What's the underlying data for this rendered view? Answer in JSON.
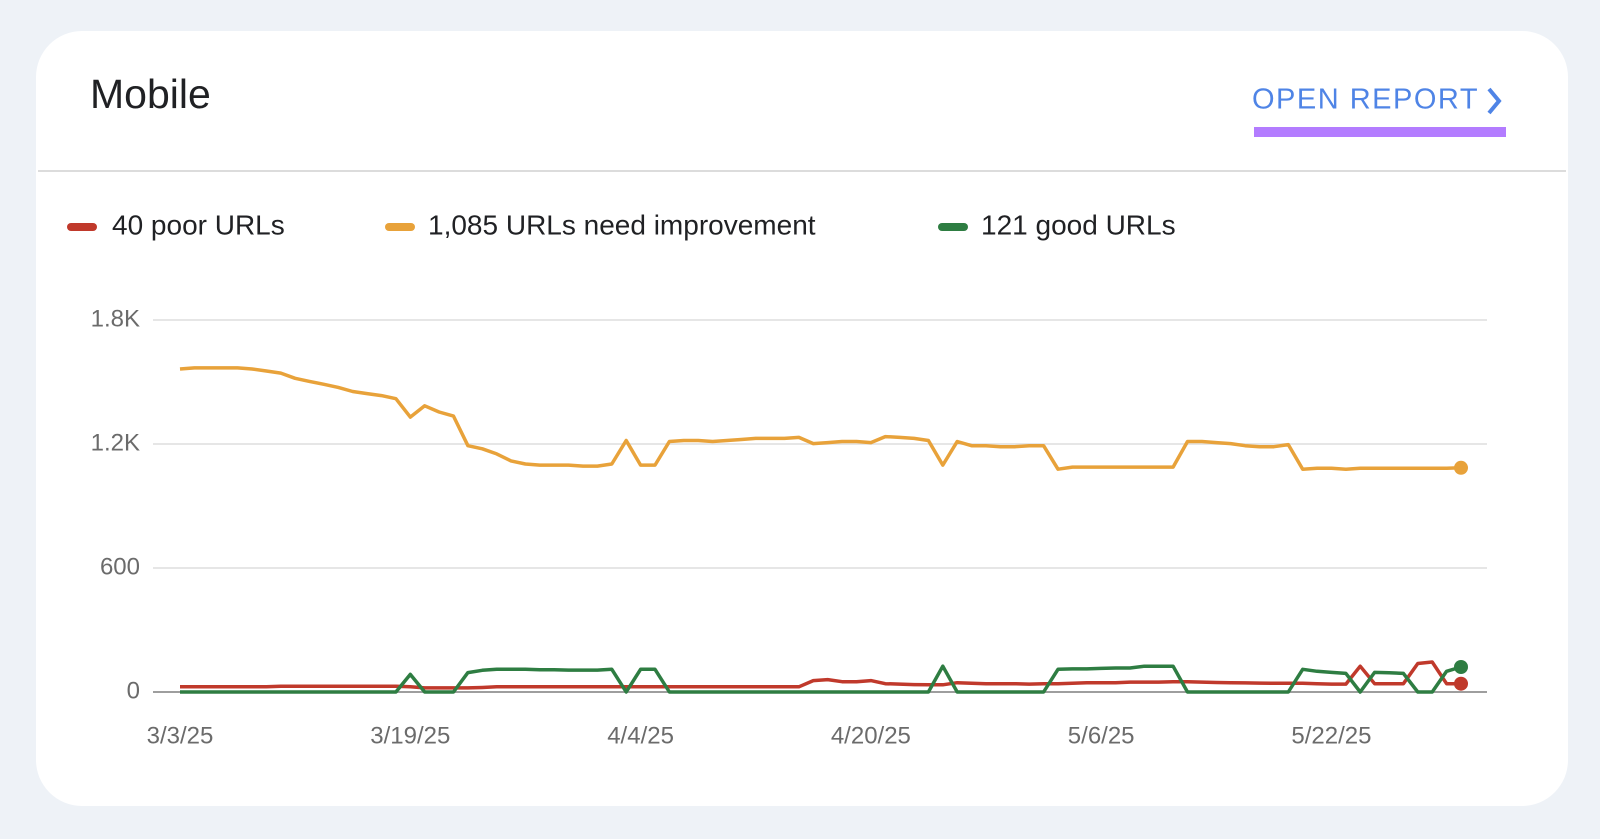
{
  "header": {
    "title": "Mobile",
    "link": "OPEN REPORT"
  },
  "chart_data": {
    "type": "line",
    "categories": [
      "3/3/25",
      null,
      null,
      null,
      null,
      null,
      null,
      null,
      null,
      null,
      null,
      null,
      null,
      null,
      null,
      null,
      "3/19/25",
      null,
      null,
      null,
      null,
      null,
      null,
      null,
      null,
      null,
      null,
      null,
      null,
      null,
      null,
      null,
      "4/4/25",
      null,
      null,
      null,
      null,
      null,
      null,
      null,
      null,
      null,
      null,
      null,
      null,
      null,
      null,
      null,
      "4/20/25",
      null,
      null,
      null,
      null,
      null,
      null,
      null,
      null,
      null,
      null,
      null,
      null,
      null,
      null,
      null,
      "5/6/25",
      null,
      null,
      null,
      null,
      null,
      null,
      null,
      null,
      null,
      null,
      null,
      null,
      null,
      null,
      null,
      "5/22/25",
      null,
      null,
      null,
      null,
      null,
      null,
      null,
      null,
      null
    ],
    "series": [
      {
        "name": "40 poor URLs",
        "color": "#c0392b",
        "values": [
          25,
          25,
          25,
          25,
          25,
          25,
          25,
          28,
          28,
          28,
          28,
          28,
          28,
          28,
          28,
          28,
          25,
          20,
          20,
          20,
          20,
          22,
          25,
          25,
          25,
          25,
          25,
          25,
          25,
          25,
          25,
          25,
          25,
          25,
          25,
          25,
          25,
          25,
          25,
          25,
          25,
          25,
          25,
          25,
          55,
          60,
          50,
          50,
          55,
          40,
          38,
          36,
          35,
          35,
          45,
          42,
          40,
          40,
          40,
          38,
          40,
          40,
          42,
          45,
          45,
          45,
          48,
          48,
          48,
          50,
          50,
          48,
          46,
          45,
          44,
          43,
          42,
          42,
          42,
          40,
          38,
          38,
          125,
          40,
          40,
          40,
          138,
          145,
          40,
          40
        ]
      },
      {
        "name": "1,085 URLs need improvement",
        "color": "#e8a23a",
        "values": [
          1563,
          1568,
          1568,
          1568,
          1568,
          1563,
          1553,
          1543,
          1518,
          1503,
          1489,
          1474,
          1454,
          1444,
          1434,
          1419,
          1330,
          1385,
          1355,
          1335,
          1192,
          1177,
          1152,
          1118,
          1103,
          1098,
          1098,
          1098,
          1093,
          1093,
          1103,
          1217,
          1098,
          1098,
          1212,
          1217,
          1217,
          1212,
          1217,
          1222,
          1227,
          1227,
          1227,
          1232,
          1202,
          1207,
          1212,
          1212,
          1207,
          1236,
          1232,
          1227,
          1217,
          1098,
          1212,
          1192,
          1192,
          1187,
          1187,
          1192,
          1192,
          1078,
          1088,
          1088,
          1088,
          1088,
          1088,
          1088,
          1088,
          1088,
          1212,
          1212,
          1207,
          1202,
          1192,
          1187,
          1187,
          1197,
          1078,
          1083,
          1083,
          1078,
          1083,
          1083,
          1083,
          1083,
          1083,
          1083,
          1083,
          1085
        ]
      },
      {
        "name": "121 good URLs",
        "color": "#2e7d42",
        "values": [
          0,
          0,
          0,
          0,
          0,
          0,
          0,
          0,
          0,
          0,
          0,
          0,
          0,
          0,
          0,
          0,
          85,
          0,
          0,
          0,
          94,
          105,
          110,
          110,
          110,
          108,
          108,
          106,
          106,
          106,
          110,
          0,
          110,
          110,
          0,
          0,
          0,
          0,
          0,
          0,
          0,
          0,
          0,
          0,
          0,
          0,
          0,
          0,
          0,
          0,
          0,
          0,
          0,
          125,
          0,
          0,
          0,
          0,
          0,
          0,
          0,
          110,
          112,
          112,
          114,
          116,
          116,
          125,
          125,
          125,
          0,
          0,
          0,
          0,
          0,
          0,
          0,
          0,
          110,
          100,
          95,
          90,
          0,
          95,
          93,
          90,
          0,
          0,
          100,
          121
        ]
      }
    ],
    "ylim": [
      0,
      1800
    ],
    "yticks": [
      0,
      600,
      {
        "value": 1200,
        "label": "1.2K"
      },
      {
        "value": 1800,
        "label": "1.8K"
      }
    ],
    "grid": true
  }
}
